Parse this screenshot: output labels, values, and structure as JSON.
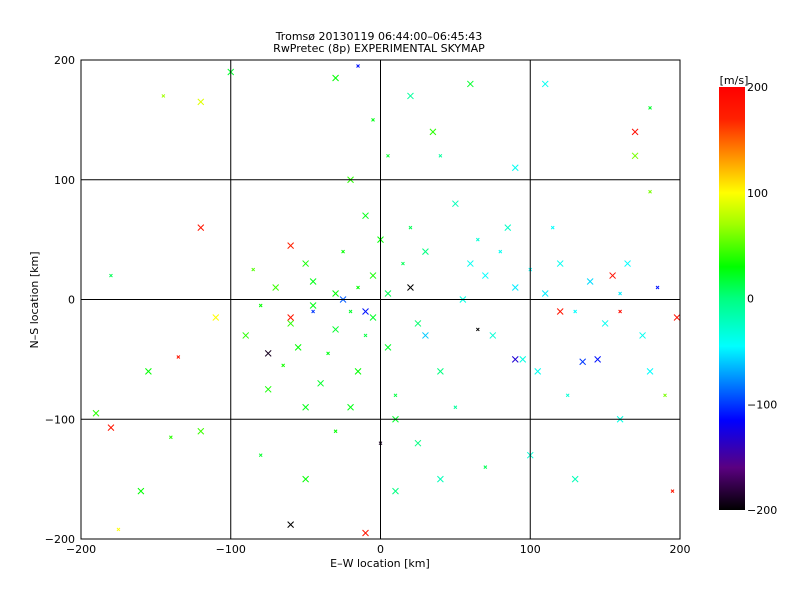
{
  "chart_data": {
    "type": "scatter",
    "title": "Tromsø 20130119 06:44:00–06:45:43",
    "subtitle": "RwPretec (8p) EXPERIMENTAL SKYMAP",
    "xlabel": "E–W location [km]",
    "ylabel": "N–S location [km]",
    "xlim": [
      -200,
      200
    ],
    "ylim": [
      -200,
      200
    ],
    "xticks": [
      -200,
      -100,
      0,
      100,
      200
    ],
    "yticks": [
      -200,
      -100,
      0,
      100,
      200
    ],
    "xtick_labels": [
      "−200",
      "−100",
      "0",
      "100",
      "200"
    ],
    "ytick_labels": [
      "−200",
      "−100",
      "0",
      "100",
      "200"
    ],
    "grid": true,
    "colorbar": {
      "label": "[m/s]",
      "range": [
        -200,
        200
      ],
      "ticks": [
        200,
        100,
        0,
        -100,
        -200
      ],
      "tick_labels": [
        "200",
        "100",
        "0",
        "−100",
        "−200"
      ]
    },
    "colormap": [
      [
        -200,
        "#000000"
      ],
      [
        -160,
        "#5a0080"
      ],
      [
        -115,
        "#0000ff"
      ],
      [
        -80,
        "#0080ff"
      ],
      [
        -45,
        "#00ffff"
      ],
      [
        0,
        "#00ff80"
      ],
      [
        30,
        "#00ff00"
      ],
      [
        70,
        "#a0ff00"
      ],
      [
        100,
        "#ffff00"
      ],
      [
        130,
        "#ffa000"
      ],
      [
        170,
        "#ff2000"
      ],
      [
        200,
        "#ff0000"
      ]
    ],
    "points_note": "representative sample",
    "points": [
      [
        -20,
        -10,
        20
      ],
      [
        -30,
        5,
        30
      ],
      [
        -45,
        15,
        25
      ],
      [
        -10,
        -30,
        15
      ],
      [
        -5,
        20,
        35
      ],
      [
        -60,
        -20,
        40
      ],
      [
        -35,
        -45,
        25
      ],
      [
        -15,
        -60,
        30
      ],
      [
        5,
        -40,
        20
      ],
      [
        -25,
        40,
        30
      ],
      [
        -50,
        30,
        35
      ],
      [
        -70,
        10,
        45
      ],
      [
        -80,
        -5,
        30
      ],
      [
        -40,
        -70,
        20
      ],
      [
        -20,
        -90,
        25
      ],
      [
        10,
        -80,
        15
      ],
      [
        0,
        50,
        30
      ],
      [
        -10,
        70,
        25
      ],
      [
        15,
        30,
        10
      ],
      [
        25,
        -20,
        5
      ],
      [
        -55,
        -40,
        30
      ],
      [
        -65,
        -55,
        35
      ],
      [
        -30,
        -25,
        20
      ],
      [
        -45,
        -5,
        25
      ],
      [
        -15,
        10,
        30
      ],
      [
        -5,
        -15,
        20
      ],
      [
        5,
        5,
        10
      ],
      [
        -85,
        25,
        50
      ],
      [
        -90,
        -30,
        40
      ],
      [
        -75,
        -75,
        35
      ],
      [
        20,
        60,
        10
      ],
      [
        30,
        40,
        0
      ],
      [
        10,
        -100,
        20
      ],
      [
        -30,
        -110,
        30
      ],
      [
        -50,
        -90,
        25
      ],
      [
        40,
        -60,
        0
      ],
      [
        50,
        -90,
        -10
      ],
      [
        25,
        -120,
        0
      ],
      [
        -20,
        100,
        40
      ],
      [
        5,
        120,
        20
      ],
      [
        60,
        30,
        -40
      ],
      [
        70,
        20,
        -45
      ],
      [
        80,
        40,
        -40
      ],
      [
        90,
        10,
        -50
      ],
      [
        55,
        0,
        -35
      ],
      [
        100,
        25,
        -45
      ],
      [
        110,
        5,
        -50
      ],
      [
        120,
        30,
        -40
      ],
      [
        130,
        -10,
        -45
      ],
      [
        140,
        15,
        -55
      ],
      [
        150,
        -20,
        -40
      ],
      [
        160,
        5,
        -50
      ],
      [
        75,
        -30,
        -30
      ],
      [
        95,
        -50,
        -35
      ],
      [
        65,
        50,
        -30
      ],
      [
        85,
        60,
        -25
      ],
      [
        105,
        -60,
        -40
      ],
      [
        125,
        -80,
        -30
      ],
      [
        145,
        -50,
        -110
      ],
      [
        135,
        -52,
        -100
      ],
      [
        115,
        60,
        -45
      ],
      [
        90,
        110,
        -40
      ],
      [
        50,
        80,
        -20
      ],
      [
        40,
        120,
        -10
      ],
      [
        165,
        30,
        -45
      ],
      [
        180,
        -60,
        -45
      ],
      [
        185,
        10,
        -110
      ],
      [
        175,
        -30,
        -40
      ],
      [
        160,
        -100,
        -35
      ],
      [
        190,
        -80,
        60
      ],
      [
        -60,
        45,
        170
      ],
      [
        -60,
        -15,
        180
      ],
      [
        -135,
        -48,
        180
      ],
      [
        -180,
        -107,
        180
      ],
      [
        155,
        20,
        185
      ],
      [
        160,
        -10,
        190
      ],
      [
        120,
        -10,
        180
      ],
      [
        198,
        -15,
        185
      ],
      [
        195,
        -160,
        180
      ],
      [
        -10,
        -195,
        180
      ],
      [
        -60,
        -188,
        -200
      ],
      [
        65,
        -25,
        -200
      ],
      [
        20,
        10,
        -200
      ],
      [
        -75,
        -45,
        -190
      ],
      [
        0,
        -120,
        -190
      ],
      [
        -10,
        -10,
        -110
      ],
      [
        -25,
        0,
        -90
      ],
      [
        -45,
        -10,
        -100
      ],
      [
        90,
        -50,
        -130
      ],
      [
        30,
        -30,
        -60
      ],
      [
        -175,
        -192,
        100
      ],
      [
        -110,
        -15,
        100
      ],
      [
        -120,
        165,
        90
      ],
      [
        -145,
        170,
        70
      ],
      [
        -190,
        -95,
        40
      ],
      [
        -160,
        -160,
        30
      ],
      [
        -140,
        -115,
        40
      ],
      [
        -120,
        -110,
        45
      ],
      [
        -100,
        190,
        20
      ],
      [
        180,
        90,
        60
      ],
      [
        20,
        170,
        -10
      ],
      [
        -30,
        185,
        30
      ],
      [
        -15,
        195,
        -110
      ],
      [
        60,
        180,
        20
      ],
      [
        110,
        180,
        -40
      ],
      [
        180,
        160,
        20
      ],
      [
        170,
        120,
        60
      ],
      [
        170,
        140,
        190
      ],
      [
        -180,
        20,
        10
      ],
      [
        -155,
        -60,
        30
      ],
      [
        -120,
        60,
        180
      ],
      [
        -5,
        150,
        25
      ],
      [
        35,
        140,
        40
      ],
      [
        -50,
        -150,
        30
      ],
      [
        -80,
        -130,
        20
      ],
      [
        40,
        -150,
        -20
      ],
      [
        10,
        -160,
        0
      ],
      [
        70,
        -140,
        10
      ],
      [
        100,
        -130,
        -30
      ],
      [
        130,
        -150,
        -20
      ]
    ]
  }
}
